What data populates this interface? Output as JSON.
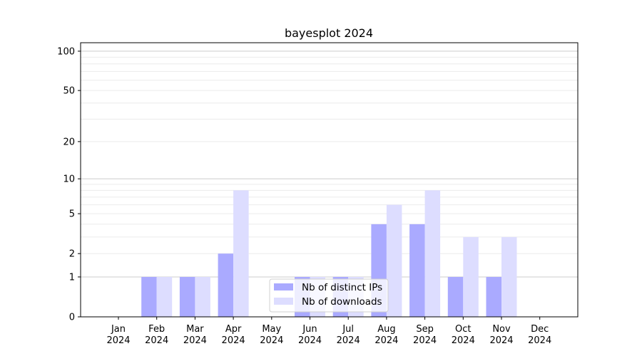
{
  "chart_data": {
    "type": "bar",
    "title": "bayesplot 2024",
    "xlabel": "",
    "ylabel": "",
    "yscale": "log(1+y)",
    "ylim": [
      0,
      116
    ],
    "yticks": [
      0,
      1,
      2,
      5,
      10,
      20,
      50,
      100
    ],
    "ytick_labels": [
      "0",
      "1",
      "2",
      "5",
      "10",
      "20",
      "50",
      "100"
    ],
    "grid": true,
    "legend_placement": "bottom-center",
    "categories": [
      "Jan\n2024",
      "Feb\n2024",
      "Mar\n2024",
      "Apr\n2024",
      "May\n2024",
      "Jun\n2024",
      "Jul\n2024",
      "Aug\n2024",
      "Sep\n2024",
      "Oct\n2024",
      "Nov\n2024",
      "Dec\n2024"
    ],
    "series": [
      {
        "name": "Nb of distinct IPs",
        "color": "#aaaaff",
        "values": [
          0,
          1,
          1,
          2,
          0,
          1,
          1,
          4,
          4,
          1,
          1,
          0
        ]
      },
      {
        "name": "Nb of downloads",
        "color": "#ddddff",
        "values": [
          0,
          1,
          1,
          8,
          0,
          1,
          1,
          6,
          8,
          3,
          3,
          0
        ]
      }
    ]
  }
}
